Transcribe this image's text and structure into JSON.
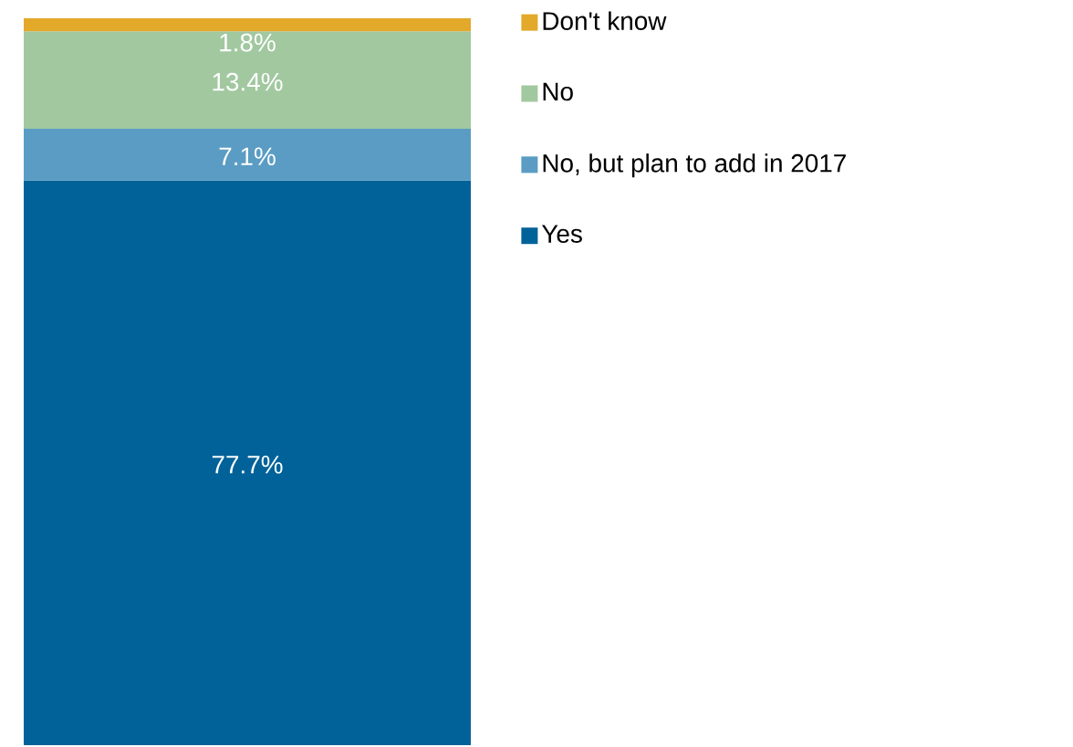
{
  "chart_data": {
    "type": "bar",
    "stacked": true,
    "categories": [
      null
    ],
    "legend": "right",
    "series": [
      {
        "name": "Yes",
        "color": "#006299",
        "values": [
          77.7
        ],
        "value_labels": [
          "77.7%"
        ]
      },
      {
        "name": "No, but plan to add in 2017",
        "color": "#5b9cc4",
        "values": [
          7.1
        ],
        "value_labels": [
          "7.1%"
        ]
      },
      {
        "name": "No",
        "color": "#a2c8a0",
        "values": [
          13.4
        ],
        "value_labels": [
          "13.4%"
        ]
      },
      {
        "name": "Don't know",
        "color": "#e3a92b",
        "values": [
          1.8
        ],
        "value_labels": [
          "1.8%"
        ]
      }
    ]
  }
}
